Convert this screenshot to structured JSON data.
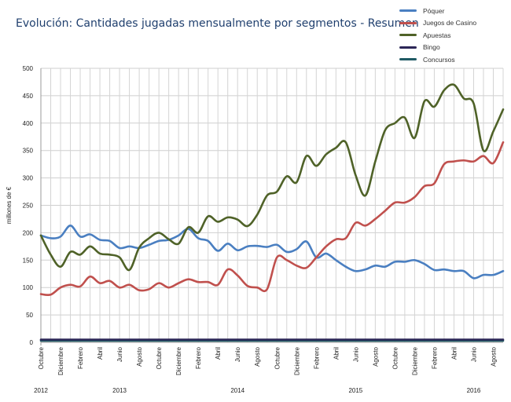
{
  "chart_data": {
    "type": "line",
    "title": "Evolución: Cantidades jugadas mensualmente por segmentos - Resumen",
    "ylabel": "millones de €",
    "xlabel": "",
    "ylim": [
      0,
      500
    ],
    "yticks": [
      0,
      50,
      100,
      150,
      200,
      250,
      300,
      350,
      400,
      450,
      500
    ],
    "grid": true,
    "legend_position": "top-right",
    "x": [
      "2012-10",
      "2012-11",
      "2012-12",
      "2013-01",
      "2013-02",
      "2013-03",
      "2013-04",
      "2013-05",
      "2013-06",
      "2013-07",
      "2013-08",
      "2013-09",
      "2013-10",
      "2013-11",
      "2013-12",
      "2014-01",
      "2014-02",
      "2014-03",
      "2014-04",
      "2014-05",
      "2014-06",
      "2014-07",
      "2014-08",
      "2014-09",
      "2014-10",
      "2014-11",
      "2014-12",
      "2015-01",
      "2015-02",
      "2015-03",
      "2015-04",
      "2015-05",
      "2015-06",
      "2015-07",
      "2015-08",
      "2015-09",
      "2015-10",
      "2015-11",
      "2015-12",
      "2016-01",
      "2016-02",
      "2016-03",
      "2016-04",
      "2016-05",
      "2016-06",
      "2016-07",
      "2016-08",
      "2016-09"
    ],
    "x_tick_labels": [
      "Octubre",
      "Diciembre",
      "Febrero",
      "Abril",
      "Junio",
      "Agosto",
      "Octubre",
      "Diciembre",
      "Febrero",
      "Abril",
      "Junio",
      "Agosto",
      "Octubre",
      "Diciembre",
      "Febrero",
      "Abril",
      "Junio",
      "Agosto",
      "Octubre",
      "Diciembre",
      "Febrero",
      "Abril",
      "Junio",
      "Agosto"
    ],
    "year_labels": [
      {
        "label": "2012",
        "month": "2012-10"
      },
      {
        "label": "2013",
        "month": "2013-06"
      },
      {
        "label": "2014",
        "month": "2014-06"
      },
      {
        "label": "2015",
        "month": "2015-06"
      },
      {
        "label": "2016",
        "month": "2016-06"
      }
    ],
    "series": [
      {
        "name": "Póquer",
        "color": "#4a7fc1",
        "values": [
          195,
          190,
          193,
          213,
          193,
          197,
          187,
          185,
          172,
          175,
          172,
          178,
          185,
          187,
          195,
          207,
          190,
          185,
          167,
          180,
          168,
          175,
          176,
          174,
          178,
          165,
          170,
          184,
          155,
          162,
          150,
          138,
          130,
          133,
          140,
          138,
          147,
          147,
          150,
          143,
          132,
          133,
          130,
          130,
          117,
          123,
          123,
          130
        ]
      },
      {
        "name": "Juegos de Casino",
        "color": "#c0504d",
        "values": [
          88,
          87,
          100,
          105,
          102,
          120,
          108,
          112,
          100,
          105,
          95,
          97,
          108,
          100,
          108,
          115,
          110,
          110,
          105,
          133,
          122,
          103,
          100,
          97,
          155,
          150,
          140,
          136,
          155,
          175,
          188,
          190,
          218,
          213,
          225,
          240,
          255,
          255,
          265,
          285,
          290,
          325,
          330,
          332,
          330,
          340,
          327,
          365
        ]
      },
      {
        "name": "Apuestas",
        "color": "#4f6228",
        "values": [
          195,
          160,
          138,
          165,
          160,
          175,
          162,
          160,
          155,
          132,
          173,
          190,
          200,
          188,
          180,
          210,
          200,
          230,
          220,
          228,
          224,
          212,
          233,
          268,
          275,
          303,
          292,
          340,
          322,
          343,
          355,
          365,
          305,
          268,
          330,
          387,
          400,
          410,
          373,
          440,
          430,
          460,
          470,
          445,
          436,
          350,
          385,
          425
        ]
      },
      {
        "name": "Bingo",
        "color": "#2c2657",
        "values": [
          5,
          5,
          5,
          5,
          5,
          5,
          5,
          5,
          5,
          5,
          5,
          5,
          5,
          5,
          5,
          5,
          5,
          5,
          5,
          5,
          5,
          5,
          5,
          5,
          5,
          5,
          5,
          5,
          5,
          5,
          5,
          5,
          5,
          5,
          5,
          5,
          5,
          5,
          5,
          5,
          5,
          5,
          5,
          5,
          5,
          5,
          5,
          5
        ]
      },
      {
        "name": "Concursos",
        "color": "#1f5a64",
        "values": [
          3,
          3,
          3,
          3,
          3,
          3,
          3,
          3,
          3,
          3,
          3,
          3,
          3,
          3,
          3,
          3,
          3,
          3,
          3,
          3,
          3,
          3,
          3,
          3,
          3,
          3,
          3,
          3,
          3,
          3,
          3,
          3,
          3,
          3,
          3,
          3,
          3,
          3,
          3,
          3,
          3,
          3,
          3,
          3,
          3,
          3,
          3,
          3
        ]
      }
    ]
  }
}
